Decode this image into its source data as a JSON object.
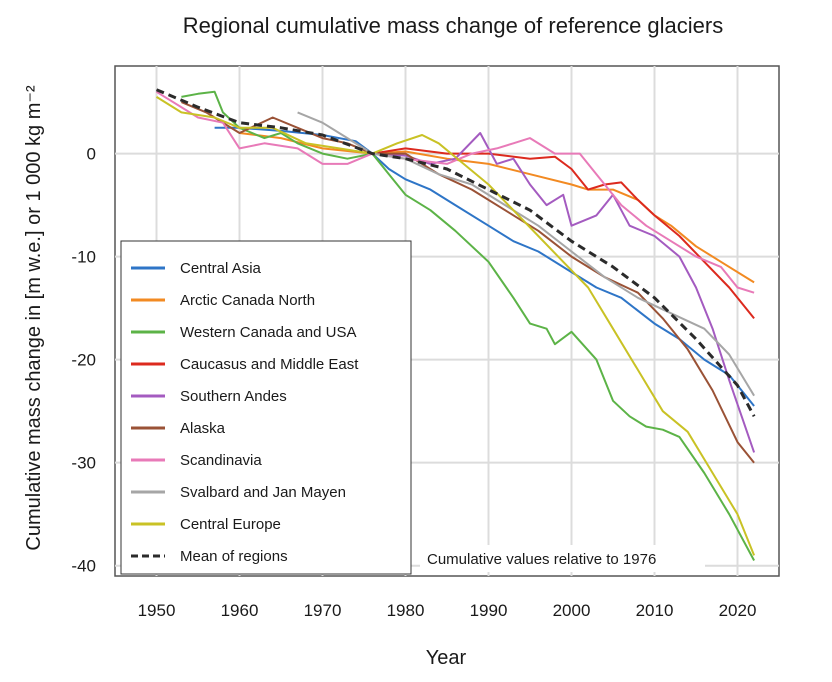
{
  "chart_data": {
    "type": "line",
    "title": "Regional cumulative mass change of reference glaciers",
    "xlabel": "Year",
    "ylabel": "Cumulative mass change in [m w.e.] or 1 000 kg m⁻²",
    "annotation": "Cumulative values relative to 1976",
    "xlim": [
      1945,
      2025
    ],
    "ylim": [
      -41,
      8.5
    ],
    "xticks": [
      1950,
      1960,
      1970,
      1980,
      1990,
      2000,
      2010,
      2020
    ],
    "yticks": [
      0,
      -10,
      -20,
      -30,
      -40
    ],
    "grid": true,
    "legend_position": "lower-left",
    "series": [
      {
        "name": "Central Asia",
        "color": "#2e75c7",
        "points": [
          [
            1957,
            2.5
          ],
          [
            1960,
            2.5
          ],
          [
            1965,
            2.2
          ],
          [
            1970,
            1.8
          ],
          [
            1974,
            1.2
          ],
          [
            1976,
            0
          ],
          [
            1978,
            -1.5
          ],
          [
            1980,
            -2.5
          ],
          [
            1983,
            -3.5
          ],
          [
            1986,
            -5
          ],
          [
            1990,
            -7
          ],
          [
            1993,
            -8.5
          ],
          [
            1996,
            -9.5
          ],
          [
            2000,
            -11.5
          ],
          [
            2003,
            -13
          ],
          [
            2006,
            -14
          ],
          [
            2010,
            -16.5
          ],
          [
            2013,
            -18
          ],
          [
            2016,
            -20
          ],
          [
            2019,
            -21.5
          ],
          [
            2022,
            -24.5
          ]
        ]
      },
      {
        "name": "Arctic Canada North",
        "color": "#f28a22",
        "points": [
          [
            1960,
            2
          ],
          [
            1965,
            1.5
          ],
          [
            1970,
            0.5
          ],
          [
            1976,
            0
          ],
          [
            1980,
            0.2
          ],
          [
            1985,
            -0.5
          ],
          [
            1990,
            -1
          ],
          [
            1995,
            -2
          ],
          [
            2000,
            -3
          ],
          [
            2002,
            -3.5
          ],
          [
            2005,
            -3.5
          ],
          [
            2008,
            -4.5
          ],
          [
            2010,
            -6
          ],
          [
            2012,
            -7
          ],
          [
            2015,
            -9
          ],
          [
            2018,
            -10.5
          ],
          [
            2022,
            -12.5
          ]
        ]
      },
      {
        "name": "Western Canada and USA",
        "color": "#5cb347",
        "points": [
          [
            1953,
            5.5
          ],
          [
            1955,
            5.8
          ],
          [
            1957,
            6
          ],
          [
            1958,
            4
          ],
          [
            1960,
            2.5
          ],
          [
            1963,
            1.5
          ],
          [
            1965,
            2
          ],
          [
            1967,
            1
          ],
          [
            1970,
            0
          ],
          [
            1973,
            -0.5
          ],
          [
            1976,
            0
          ],
          [
            1978,
            -2
          ],
          [
            1980,
            -4
          ],
          [
            1983,
            -5.5
          ],
          [
            1986,
            -7.5
          ],
          [
            1990,
            -10.5
          ],
          [
            1993,
            -14
          ],
          [
            1995,
            -16.5
          ],
          [
            1997,
            -17
          ],
          [
            1998,
            -18.5
          ],
          [
            2000,
            -17.3
          ],
          [
            2003,
            -20
          ],
          [
            2005,
            -24
          ],
          [
            2007,
            -25.5
          ],
          [
            2009,
            -26.5
          ],
          [
            2011,
            -26.8
          ],
          [
            2013,
            -27.5
          ],
          [
            2016,
            -31
          ],
          [
            2019,
            -35
          ],
          [
            2022,
            -39.5
          ]
        ]
      },
      {
        "name": "Caucasus and Middle East",
        "color": "#dc2a1e",
        "points": [
          [
            1976,
            0
          ],
          [
            1980,
            0.5
          ],
          [
            1985,
            0
          ],
          [
            1990,
            0
          ],
          [
            1995,
            -0.5
          ],
          [
            1998,
            -0.3
          ],
          [
            2000,
            -1.5
          ],
          [
            2002,
            -3.5
          ],
          [
            2004,
            -3
          ],
          [
            2006,
            -2.8
          ],
          [
            2008,
            -4.5
          ],
          [
            2010,
            -6
          ],
          [
            2013,
            -8
          ],
          [
            2016,
            -10.5
          ],
          [
            2019,
            -13
          ],
          [
            2022,
            -16
          ]
        ]
      },
      {
        "name": "Southern Andes",
        "color": "#a45bc0",
        "points": [
          [
            1976,
            0
          ],
          [
            1980,
            -0.2
          ],
          [
            1983,
            -1
          ],
          [
            1986,
            -0.5
          ],
          [
            1989,
            2
          ],
          [
            1991,
            -1
          ],
          [
            1993,
            -0.5
          ],
          [
            1995,
            -3
          ],
          [
            1997,
            -5
          ],
          [
            1999,
            -4
          ],
          [
            2000,
            -7
          ],
          [
            2003,
            -6
          ],
          [
            2005,
            -4
          ],
          [
            2007,
            -7
          ],
          [
            2010,
            -8
          ],
          [
            2013,
            -10
          ],
          [
            2015,
            -13
          ],
          [
            2017,
            -17
          ],
          [
            2019,
            -22
          ],
          [
            2022,
            -29
          ]
        ]
      },
      {
        "name": "Alaska",
        "color": "#9a5236",
        "points": [
          [
            1953,
            5
          ],
          [
            1956,
            4
          ],
          [
            1960,
            2
          ],
          [
            1964,
            3.5
          ],
          [
            1967,
            2.5
          ],
          [
            1970,
            1.5
          ],
          [
            1973,
            1
          ],
          [
            1976,
            0
          ],
          [
            1980,
            0
          ],
          [
            1984,
            -2
          ],
          [
            1988,
            -3.5
          ],
          [
            1992,
            -5.5
          ],
          [
            1996,
            -7.5
          ],
          [
            2000,
            -10
          ],
          [
            2004,
            -12
          ],
          [
            2008,
            -13.5
          ],
          [
            2011,
            -16
          ],
          [
            2014,
            -19
          ],
          [
            2017,
            -23
          ],
          [
            2020,
            -28
          ],
          [
            2022,
            -30
          ]
        ]
      },
      {
        "name": "Scandinavia",
        "color": "#e87ab8",
        "points": [
          [
            1950,
            6
          ],
          [
            1955,
            3.5
          ],
          [
            1958,
            3
          ],
          [
            1960,
            0.5
          ],
          [
            1963,
            1
          ],
          [
            1967,
            0.5
          ],
          [
            1970,
            -1
          ],
          [
            1973,
            -1
          ],
          [
            1976,
            0
          ],
          [
            1980,
            -0.5
          ],
          [
            1985,
            -1
          ],
          [
            1988,
            0
          ],
          [
            1991,
            0.5
          ],
          [
            1993,
            1
          ],
          [
            1995,
            1.5
          ],
          [
            1998,
            0
          ],
          [
            2001,
            0
          ],
          [
            2003,
            -2
          ],
          [
            2006,
            -5
          ],
          [
            2009,
            -7
          ],
          [
            2012,
            -8.5
          ],
          [
            2015,
            -10
          ],
          [
            2018,
            -11
          ],
          [
            2020,
            -13
          ],
          [
            2022,
            -13.5
          ]
        ]
      },
      {
        "name": "Svalbard and Jan Mayen",
        "color": "#a6a6a6",
        "points": [
          [
            1967,
            4
          ],
          [
            1970,
            3
          ],
          [
            1973,
            1.5
          ],
          [
            1976,
            0
          ],
          [
            1980,
            -0.5
          ],
          [
            1984,
            -2
          ],
          [
            1988,
            -3
          ],
          [
            1992,
            -5
          ],
          [
            1996,
            -7
          ],
          [
            2000,
            -9.5
          ],
          [
            2004,
            -12
          ],
          [
            2008,
            -14
          ],
          [
            2012,
            -15.5
          ],
          [
            2016,
            -17
          ],
          [
            2019,
            -19.5
          ],
          [
            2022,
            -23.5
          ]
        ]
      },
      {
        "name": "Central Europe",
        "color": "#c9c225",
        "points": [
          [
            1950,
            5.5
          ],
          [
            1953,
            4
          ],
          [
            1957,
            3.5
          ],
          [
            1960,
            2.5
          ],
          [
            1964,
            2.5
          ],
          [
            1968,
            1
          ],
          [
            1972,
            0.5
          ],
          [
            1976,
            0
          ],
          [
            1979,
            1
          ],
          [
            1982,
            1.8
          ],
          [
            1984,
            1
          ],
          [
            1987,
            -1
          ],
          [
            1990,
            -3
          ],
          [
            1993,
            -5.5
          ],
          [
            1996,
            -8
          ],
          [
            1999,
            -10.5
          ],
          [
            2002,
            -13
          ],
          [
            2005,
            -17
          ],
          [
            2008,
            -21
          ],
          [
            2011,
            -25
          ],
          [
            2014,
            -27
          ],
          [
            2017,
            -31
          ],
          [
            2020,
            -35
          ],
          [
            2022,
            -39
          ]
        ]
      },
      {
        "name": "Mean of regions",
        "color": "#2b2b2b",
        "dashed": true,
        "points": [
          [
            1950,
            6.2
          ],
          [
            1955,
            4.5
          ],
          [
            1960,
            3
          ],
          [
            1965,
            2.5
          ],
          [
            1970,
            1.8
          ],
          [
            1976,
            0
          ],
          [
            1980,
            -0.5
          ],
          [
            1985,
            -1.5
          ],
          [
            1990,
            -3.5
          ],
          [
            1995,
            -5.5
          ],
          [
            2000,
            -8.5
          ],
          [
            2005,
            -11
          ],
          [
            2010,
            -14
          ],
          [
            2015,
            -18
          ],
          [
            2020,
            -22.5
          ],
          [
            2022,
            -25.5
          ]
        ]
      }
    ]
  }
}
